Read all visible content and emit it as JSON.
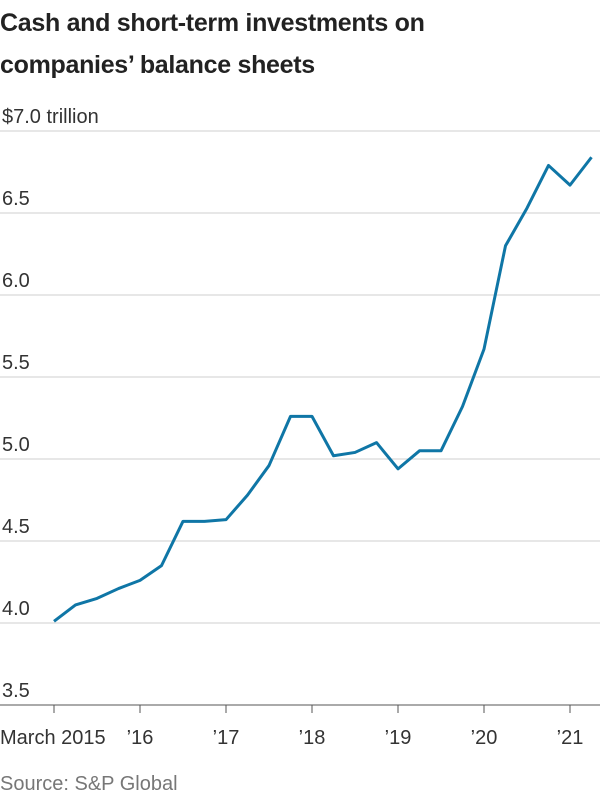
{
  "chart_data": {
    "type": "line",
    "title": "Cash and short-term investments on companies’ balance sheets",
    "source": "Source: S&P Global",
    "categories": [
      "March 2015",
      null,
      null,
      null,
      "’16",
      null,
      null,
      null,
      "’17",
      null,
      null,
      null,
      "’18",
      null,
      null,
      null,
      "’19",
      null,
      null,
      null,
      "’20",
      null,
      null,
      null,
      "’21",
      null
    ],
    "series": [
      {
        "color": "#0f76a6",
        "values": [
          4.01,
          4.11,
          4.15,
          4.21,
          4.26,
          4.35,
          4.62,
          4.62,
          4.63,
          4.78,
          4.96,
          5.26,
          5.26,
          5.02,
          5.04,
          5.1,
          4.94,
          5.05,
          5.05,
          5.32,
          5.67,
          6.3,
          6.53,
          6.79,
          6.67,
          6.84
        ]
      }
    ],
    "ylim": [
      3.5,
      7.0
    ],
    "yticks": [
      3.5,
      {
        "value": 4,
        "label": "4.0"
      },
      4.5,
      {
        "value": 5,
        "label": "5.0"
      },
      5.5,
      {
        "value": 6,
        "label": "6.0"
      },
      6.5,
      {
        "value": 7,
        "label": "$7.0 trillion"
      }
    ],
    "grid": true
  }
}
